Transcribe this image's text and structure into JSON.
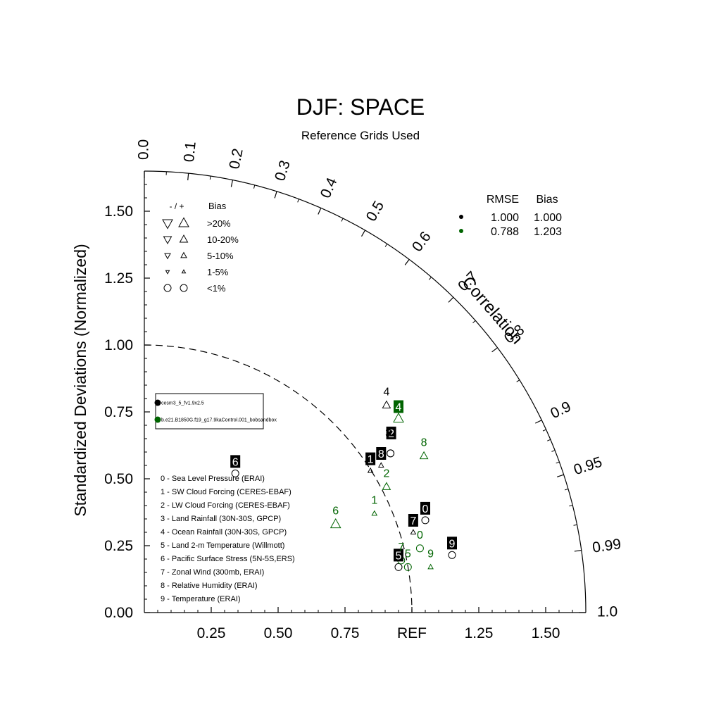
{
  "chart_data": {
    "type": "scatter",
    "diagram": "taylor",
    "title": "DJF: SPACE",
    "subtitle": "Reference Grids Used",
    "ylabel": "Standardized Deviations (Normalized)",
    "arc_label": "Correlation",
    "ref_label": "REF",
    "std_max": 1.65,
    "y_ticks": [
      "0.00",
      "0.25",
      "0.50",
      "0.75",
      "1.00",
      "1.25",
      "1.50"
    ],
    "y_tick_values": [
      0,
      0.25,
      0.5,
      0.75,
      1.0,
      1.25,
      1.5
    ],
    "x_ticks": [
      {
        "value": 0.25,
        "label": "0.25"
      },
      {
        "value": 0.5,
        "label": "0.50"
      },
      {
        "value": 0.75,
        "label": "0.75"
      },
      {
        "value": 1.0,
        "label": "REF"
      },
      {
        "value": 1.25,
        "label": "1.25"
      },
      {
        "value": 1.5,
        "label": "1.50"
      }
    ],
    "correlation_labels": [
      "0.0",
      "0.1",
      "0.2",
      "0.3",
      "0.4",
      "0.5",
      "0.6",
      "0.7",
      "0.8",
      "0.9",
      "0.95",
      "0.99",
      "1.0"
    ],
    "correlation_values": [
      0,
      0.1,
      0.2,
      0.3,
      0.4,
      0.5,
      0.6,
      0.7,
      0.8,
      0.9,
      0.95,
      0.99,
      1.0
    ],
    "ref_std": 1.0,
    "colors": {
      "case1": "#000000",
      "case2": "#006400"
    },
    "bias_legend": {
      "header_sign": "- / +",
      "header_bias": "Bias",
      "rows": [
        ">20%",
        "10-20%",
        "5-10%",
        "1-5%",
        "<1%"
      ]
    },
    "stats_legend": {
      "header_rmse": "RMSE",
      "header_bias": "Bias",
      "rows": [
        {
          "rmse": "1.000",
          "bias": "1.000",
          "color": "#000000"
        },
        {
          "rmse": "0.788",
          "bias": "1.203",
          "color": "#006400"
        }
      ]
    },
    "case_legend": [
      {
        "name": "cesm3_5_fv1.9x2.5",
        "color": "#000000"
      },
      {
        "name": "b.e21.B1850G.f19_g17.9kaControl.001_bobsandbox",
        "color": "#006400"
      }
    ],
    "variables": [
      "0 - Sea Level Pressure (ERAI)",
      "1 - SW Cloud Forcing (CERES-EBAF)",
      "2 - LW Cloud Forcing (CERES-EBAF)",
      "3 - Land Rainfall (30N-30S, GPCP)",
      "4 - Ocean Rainfall (30N-30S, GPCP)",
      "5 - Land 2-m Temperature (Willmott)",
      "6 - Pacific Surface Stress (5N-5S,ERS)",
      "7 - Zonal Wind (300mb, ERAI)",
      "8 - Relative Humidity (ERAI)",
      "9 - Temperature (ERAI)"
    ],
    "series": [
      {
        "name": "cesm3_5_fv1.9x2.5",
        "color": "#000000",
        "points": [
          {
            "id": "0",
            "x": 1.05,
            "y": 0.345,
            "marker": "circle"
          },
          {
            "id": "1",
            "x": 0.845,
            "y": 0.53,
            "marker": "up-tri-3"
          },
          {
            "id": "2",
            "x": 0.92,
            "y": 0.595,
            "marker": "circle"
          },
          {
            "id": "3",
            "x": 0.92,
            "y": 0.595,
            "marker": "circle"
          },
          {
            "id": "4",
            "x": 0.905,
            "y": 0.775,
            "marker": "up-tri-2"
          },
          {
            "id": "5",
            "x": 0.95,
            "y": 0.17,
            "marker": "circle"
          },
          {
            "id": "6",
            "x": 0.34,
            "y": 0.52,
            "marker": "circle"
          },
          {
            "id": "7",
            "x": 1.005,
            "y": 0.3,
            "marker": "up-tri-3"
          },
          {
            "id": "8",
            "x": 0.885,
            "y": 0.55,
            "marker": "up-tri-3"
          },
          {
            "id": "9",
            "x": 1.15,
            "y": 0.215,
            "marker": "circle"
          }
        ]
      },
      {
        "name": "b.e21.B1850G.f19_g17.9kaControl.001_bobsandbox",
        "color": "#006400",
        "points": [
          {
            "id": "0",
            "x": 1.03,
            "y": 0.24,
            "marker": "circle"
          },
          {
            "id": "1",
            "x": 0.86,
            "y": 0.37,
            "marker": "up-tri-3"
          },
          {
            "id": "2",
            "x": 0.905,
            "y": 0.47,
            "marker": "up-tri-2"
          },
          {
            "id": "4",
            "x": 0.95,
            "y": 0.725,
            "marker": "up-tri-1"
          },
          {
            "id": "5",
            "x": 0.985,
            "y": 0.17,
            "marker": "circle"
          },
          {
            "id": "6",
            "x": 0.715,
            "y": 0.33,
            "marker": "up-tri-1"
          },
          {
            "id": "7",
            "x": 0.96,
            "y": 0.195,
            "marker": "circle"
          },
          {
            "id": "8",
            "x": 1.045,
            "y": 0.585,
            "marker": "up-tri-2"
          },
          {
            "id": "9",
            "x": 1.07,
            "y": 0.17,
            "marker": "up-tri-3"
          }
        ]
      }
    ]
  }
}
